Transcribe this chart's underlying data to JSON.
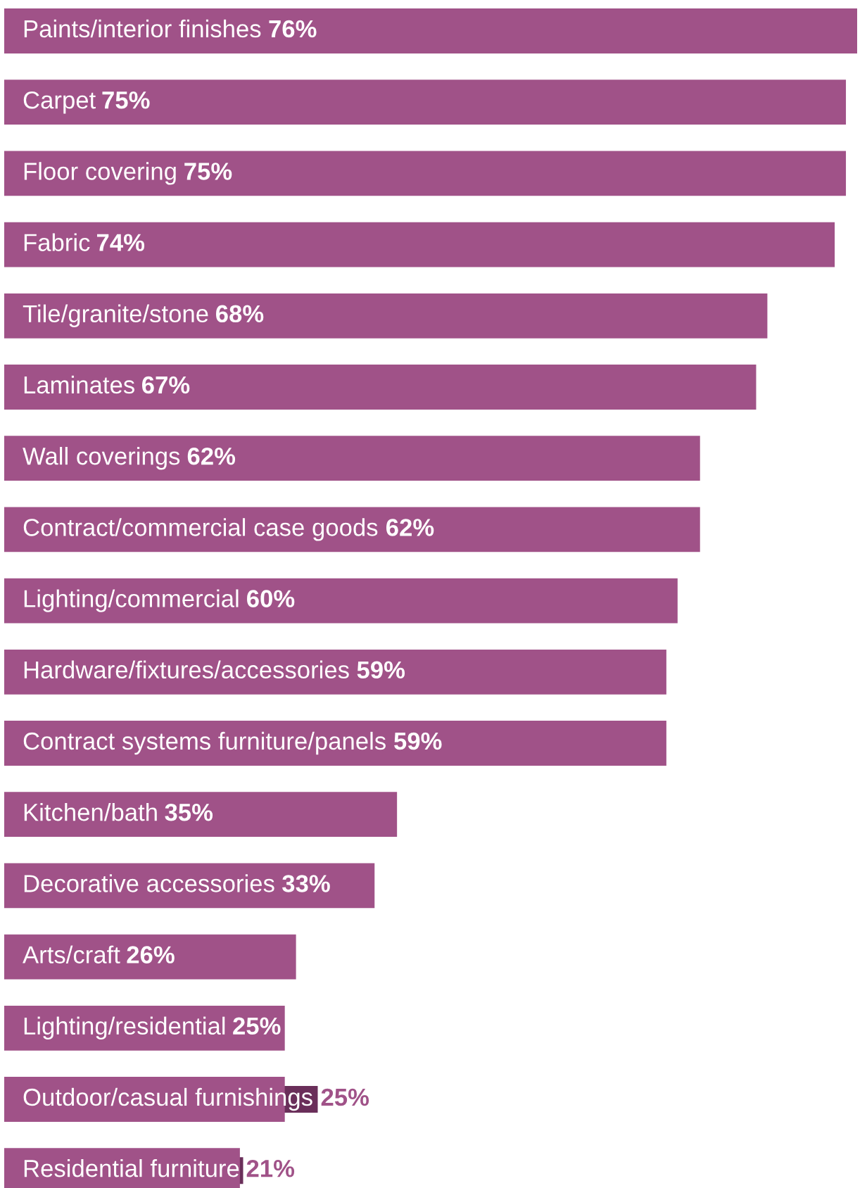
{
  "chart_data": {
    "type": "bar",
    "orientation": "horizontal",
    "color": "#a05288",
    "categories": [
      "Paints/interior finishes",
      "Carpet",
      "Floor covering",
      "Fabric",
      "Tile/granite/stone",
      "Laminates",
      "Wall coverings",
      "Contract/commercial case goods",
      "Lighting/commercial",
      "Hardware/fixtures/accessories",
      "Contract systems furniture/panels",
      "Kitchen/bath",
      "Decorative accessories",
      "Arts/craft",
      "Lighting/residential",
      "Outdoor/casual furnishings",
      "Residential furniture"
    ],
    "values": [
      76,
      75,
      75,
      74,
      68,
      67,
      62,
      62,
      60,
      59,
      59,
      35,
      33,
      26,
      25,
      25,
      21
    ],
    "value_labels": [
      "76%",
      "75%",
      "75%",
      "74%",
      "68%",
      "67%",
      "62%",
      "62%",
      "60%",
      "59%",
      "59%",
      "35%",
      "33%",
      "26%",
      "25%",
      "25%",
      "21%"
    ]
  }
}
